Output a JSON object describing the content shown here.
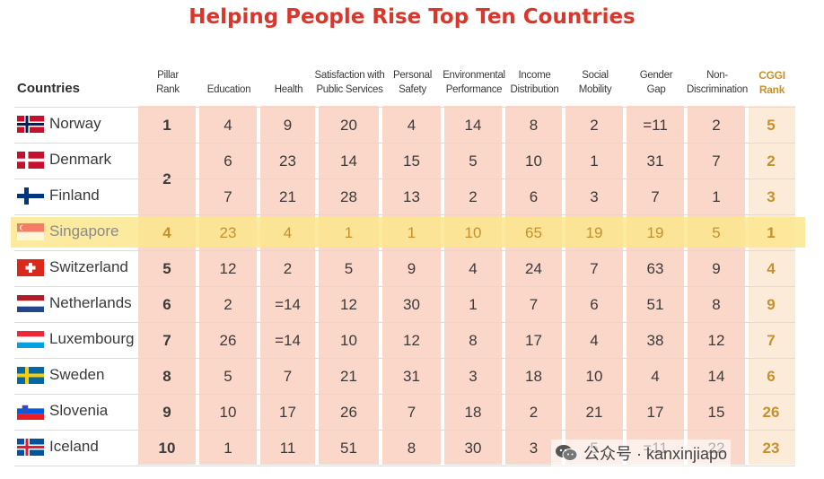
{
  "chart_data": {
    "type": "table",
    "title": "Helping People Rise Top Ten Countries",
    "row_header": "Countries",
    "columns": [
      {
        "key": "pillar",
        "label": [
          "Pillar",
          "Rank"
        ]
      },
      {
        "key": "education",
        "label": [
          "Education"
        ]
      },
      {
        "key": "health",
        "label": [
          "Health"
        ]
      },
      {
        "key": "satisfaction",
        "label": [
          "Satisfaction with",
          "Public Services"
        ]
      },
      {
        "key": "safety",
        "label": [
          "Personal",
          "Safety"
        ]
      },
      {
        "key": "environment",
        "label": [
          "Environmental",
          "Performance"
        ]
      },
      {
        "key": "income",
        "label": [
          "Income",
          "Distribution"
        ]
      },
      {
        "key": "mobility",
        "label": [
          "Social",
          "Mobility"
        ]
      },
      {
        "key": "gender",
        "label": [
          "Gender",
          "Gap"
        ]
      },
      {
        "key": "nondisc",
        "label": [
          "Non-",
          "Discrimination"
        ]
      },
      {
        "key": "cggi",
        "label": [
          "CGGI",
          "Rank"
        ]
      }
    ],
    "highlight_row": "Singapore",
    "rows": [
      {
        "country": "Norway",
        "flag": "norway",
        "values": [
          "1",
          "4",
          "9",
          "20",
          "4",
          "14",
          "8",
          "2",
          "=11",
          "2",
          "5"
        ]
      },
      {
        "country": "Denmark",
        "flag": "denmark",
        "values": [
          "2",
          "6",
          "23",
          "14",
          "15",
          "5",
          "10",
          "1",
          "31",
          "7",
          "2"
        ]
      },
      {
        "country": "Finland",
        "flag": "finland",
        "values": [
          "",
          "7",
          "21",
          "28",
          "13",
          "2",
          "6",
          "3",
          "7",
          "1",
          "3"
        ]
      },
      {
        "country": "Singapore",
        "flag": "singapore",
        "values": [
          "4",
          "23",
          "4",
          "1",
          "1",
          "10",
          "65",
          "19",
          "19",
          "5",
          "1"
        ]
      },
      {
        "country": "Switzerland",
        "flag": "switzerland",
        "values": [
          "5",
          "12",
          "2",
          "5",
          "9",
          "4",
          "24",
          "7",
          "63",
          "9",
          "4"
        ]
      },
      {
        "country": "Netherlands",
        "flag": "netherlands",
        "values": [
          "6",
          "2",
          "=14",
          "12",
          "30",
          "1",
          "7",
          "6",
          "51",
          "8",
          "9"
        ]
      },
      {
        "country": "Luxembourg",
        "flag": "luxembourg",
        "values": [
          "7",
          "26",
          "=14",
          "10",
          "12",
          "8",
          "17",
          "4",
          "38",
          "12",
          "7"
        ]
      },
      {
        "country": "Sweden",
        "flag": "sweden",
        "values": [
          "8",
          "5",
          "7",
          "21",
          "31",
          "3",
          "18",
          "10",
          "4",
          "14",
          "6"
        ]
      },
      {
        "country": "Slovenia",
        "flag": "slovenia",
        "values": [
          "9",
          "10",
          "17",
          "26",
          "7",
          "18",
          "2",
          "21",
          "17",
          "15",
          "26"
        ]
      },
      {
        "country": "Iceland",
        "flag": "iceland",
        "values": [
          "10",
          "1",
          "11",
          "51",
          "8",
          "30",
          "3",
          "5",
          "=11",
          "22",
          "23"
        ]
      }
    ],
    "colors": {
      "title": "#d9372b",
      "cell_fill": "#fbd7c9",
      "highlight": "#fbe68e",
      "cggi": "#c8902c"
    }
  },
  "watermark": {
    "text": "公众号 · kanxinjiapo",
    "icon": "wechat-icon"
  }
}
